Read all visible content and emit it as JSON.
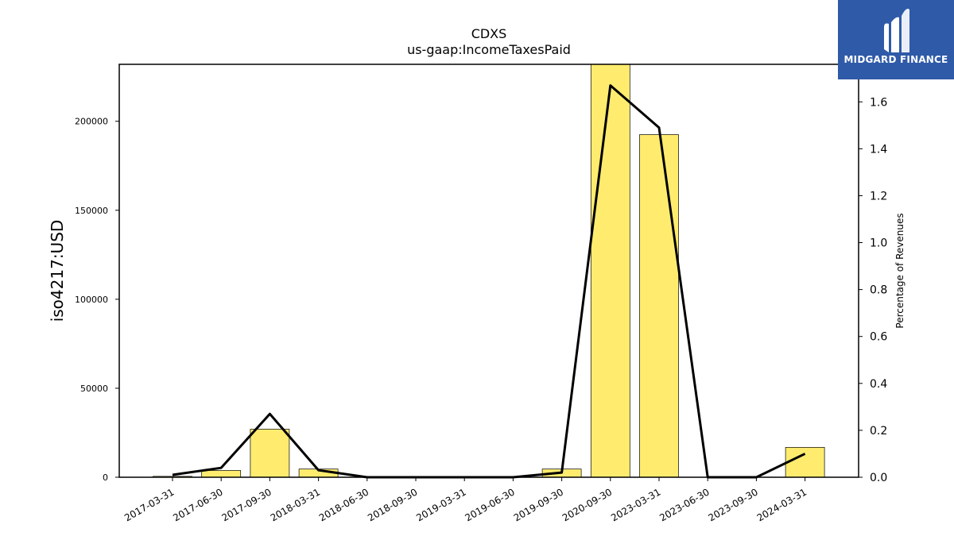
{
  "brand": {
    "name": "MIDGARD FINANCE",
    "bg_color": "#2f5aa8",
    "text_color": "#ffffff"
  },
  "chart_data": {
    "type": "bar",
    "title": "CDXS",
    "subtitle": "us-gaap:IncomeTaxesPaid",
    "ylabel": "iso4217:USD",
    "y2label": "Percentage of Revenues",
    "categories": [
      "2017-03-31",
      "2017-06-30",
      "2017-09-30",
      "2018-03-31",
      "2018-06-30",
      "2018-09-30",
      "2019-03-31",
      "2019-06-30",
      "2019-09-30",
      "2020-09-30",
      "2023-03-31",
      "2023-06-30",
      "2023-09-30",
      "2024-03-31"
    ],
    "series": [
      {
        "type": "bar",
        "axis": "left",
        "color": "#ffec6e",
        "edge_color": "#000000",
        "values": [
          500,
          3800,
          27000,
          4600,
          0,
          0,
          0,
          0,
          4600,
          232000,
          192500,
          0,
          0,
          16800
        ]
      },
      {
        "type": "line",
        "axis": "right",
        "color": "#000000",
        "values": [
          0.01,
          0.04,
          0.27,
          0.03,
          0.0,
          0.0,
          0.0,
          0.0,
          0.02,
          1.67,
          1.49,
          0.0,
          0.0,
          0.1
        ]
      }
    ],
    "ylim": [
      0,
      232000
    ],
    "y_ticks": [
      0,
      50000,
      100000,
      150000,
      200000
    ],
    "y2lim": [
      0,
      1.76
    ],
    "y2_ticks": [
      "0.0",
      "0.2",
      "0.4",
      "0.6",
      "0.8",
      "1.0",
      "1.2",
      "1.4",
      "1.6"
    ],
    "grid": false,
    "legend": "none"
  }
}
